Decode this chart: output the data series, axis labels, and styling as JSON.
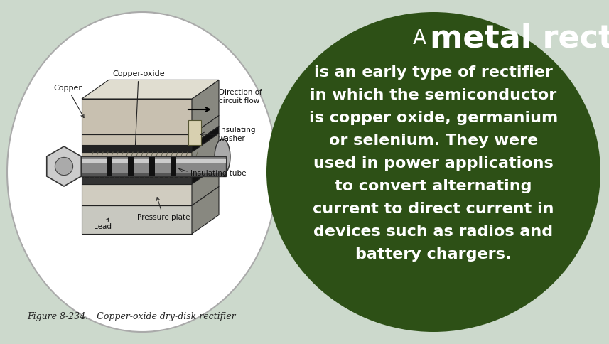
{
  "background_color": "#ccd9cc",
  "left_ellipse_color": "#ffffff",
  "left_ellipse_edge": "#aaaaaa",
  "right_ellipse_color": "#2d5016",
  "title_a": "A ",
  "title_main": "metal rectifier",
  "title_color": "#ffffff",
  "title_a_size": 20,
  "title_main_size": 32,
  "body_lines": [
    "is an early type of rectifier",
    "in which the semiconductor",
    "is copper oxide, germanium",
    "or selenium. They were",
    "used in power applications",
    "to convert alternating",
    "current to direct current in",
    "devices such as radios and",
    "battery chargers."
  ],
  "body_color": "#ffffff",
  "body_size": 16,
  "caption": "Figure 8-234.   Copper-oxide dry-disk rectifier",
  "caption_size": 9,
  "caption_color": "#222222",
  "fig_width": 8.57,
  "fig_height": 4.84,
  "dpi": 100
}
